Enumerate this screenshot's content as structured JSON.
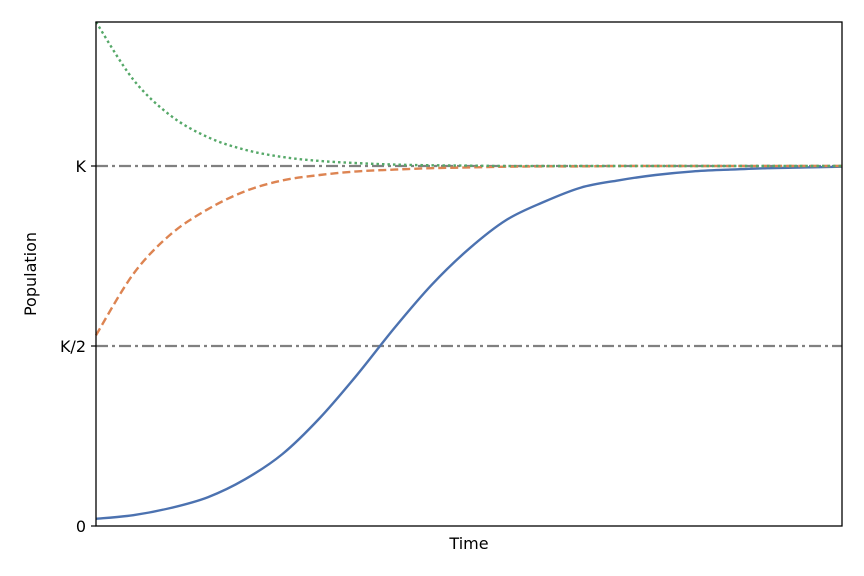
{
  "chart_data": {
    "type": "line",
    "title": "",
    "xlabel": "Time",
    "ylabel": "Population",
    "xlim": [
      0,
      10
    ],
    "ylim": [
      0,
      1.4
    ],
    "grid": false,
    "legend": "none",
    "yticks": [
      {
        "value": 0,
        "label": "0"
      },
      {
        "value": 0.5,
        "label": "K/2"
      },
      {
        "value": 1,
        "label": "K"
      }
    ],
    "reference_lines": [
      {
        "y": 1,
        "label": "K",
        "color": "#808080",
        "style": "dashdot"
      },
      {
        "y": 0.5,
        "label": "K/2",
        "color": "#808080",
        "style": "dashdot"
      }
    ],
    "series": [
      {
        "color": "#4c72b0",
        "style": "solid",
        "x": [
          0,
          0.5,
          1,
          1.5,
          2,
          2.5,
          3,
          3.5,
          4,
          4.5,
          5,
          5.5,
          6,
          6.5,
          7,
          7.5,
          8,
          8.5,
          9,
          9.5,
          10
        ],
        "y": [
          0.02,
          0.03,
          0.05,
          0.08,
          0.13,
          0.2,
          0.3,
          0.42,
          0.55,
          0.67,
          0.77,
          0.85,
          0.9,
          0.94,
          0.96,
          0.975,
          0.985,
          0.99,
          0.994,
          0.996,
          0.998
        ]
      },
      {
        "color": "#dd8452",
        "style": "dashed",
        "x": [
          0,
          0.5,
          1,
          1.5,
          2,
          2.5,
          3,
          3.5,
          4,
          4.5,
          5,
          5.5,
          6,
          6.5,
          7,
          7.5,
          8,
          8.5,
          9,
          9.5,
          10
        ],
        "y": [
          0.53,
          0.7,
          0.81,
          0.88,
          0.93,
          0.96,
          0.975,
          0.985,
          0.99,
          0.994,
          0.996,
          0.998,
          0.999,
          0.999,
          1,
          1,
          1,
          1,
          1,
          1,
          1
        ]
      },
      {
        "color": "#55a868",
        "style": "dotted",
        "x": [
          0,
          0.5,
          1,
          1.5,
          2,
          2.5,
          3,
          3.5,
          4,
          4.5,
          5,
          5.5,
          6,
          6.5,
          7,
          7.5,
          8,
          8.5,
          9,
          9.5,
          10
        ],
        "y": [
          1.4,
          1.24,
          1.14,
          1.08,
          1.045,
          1.025,
          1.014,
          1.008,
          1.004,
          1.002,
          1.001,
          1,
          1,
          1,
          1,
          1,
          1,
          1,
          1,
          1,
          1
        ]
      }
    ]
  }
}
